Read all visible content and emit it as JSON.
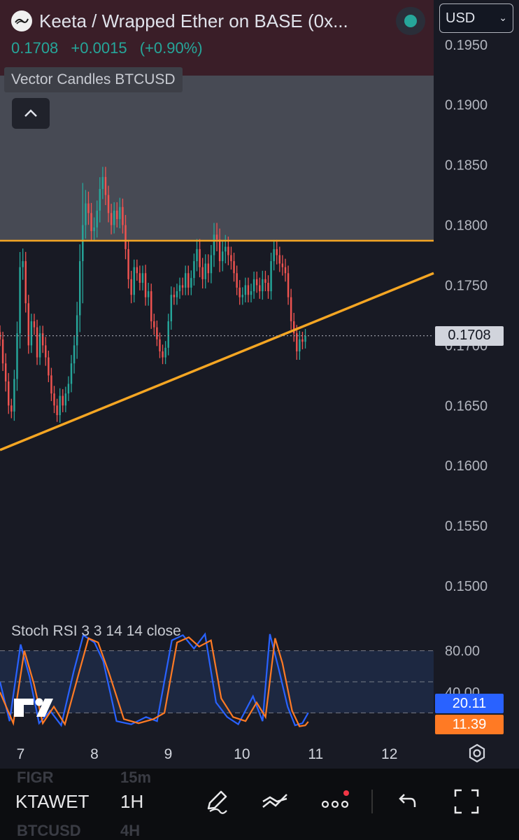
{
  "header": {
    "title": "Keeta / Wrapped Ether on BASE (0x...",
    "price": "0.1708",
    "change": "+0.0015",
    "change_pct": "(+0.90%)",
    "currency": "USD",
    "indicator_label": "Vector Candles BTCUSD"
  },
  "stoch_label": "Stoch RSI 3 3 14 14 close",
  "toolbar": {
    "symbol": "KTAWET",
    "interval": "1H",
    "ghost_top_left": "FIGR",
    "ghost_top_right": "15m",
    "ghost_bottom_left": "BTCUSD",
    "ghost_bottom_right": "4H"
  },
  "colors": {
    "up": "#26a69a",
    "down": "#ef5350",
    "orange": "#f5a623",
    "stoch_k": "#2962ff",
    "stoch_d": "#ff7a24"
  },
  "chart_data": [
    {
      "type": "candlestick",
      "title": "Keeta / Wrapped Ether on BASE",
      "timeframe": "1H",
      "ylim": [
        0.1475,
        0.1965
      ],
      "y_ticks": [
        "0.1950",
        "0.1900",
        "0.1850",
        "0.1800",
        "0.1750",
        "0.1700",
        "0.1650",
        "0.1600",
        "0.1550",
        "0.1500"
      ],
      "x_ticks": [
        {
          "label": "7",
          "day": 7
        },
        {
          "label": "8",
          "day": 8
        },
        {
          "label": "9",
          "day": 9
        },
        {
          "label": "10",
          "day": 10
        },
        {
          "label": "11",
          "day": 11
        },
        {
          "label": "12",
          "day": 12
        }
      ],
      "xlim_days": [
        6.72,
        12.6
      ],
      "current_price": "0.1708",
      "horizontal_level": 0.1787,
      "trendline": [
        {
          "day": 6.72,
          "price": 0.1613
        },
        {
          "day": 12.6,
          "price": 0.176
        }
      ],
      "shaded_zone": [
        0.1787,
        0.1955
      ],
      "closes": [
        0.1705,
        0.1685,
        0.167,
        0.165,
        0.1645,
        0.1672,
        0.171,
        0.1765,
        0.177,
        0.1735,
        0.17,
        0.172,
        0.1715,
        0.169,
        0.171,
        0.17,
        0.169,
        0.1675,
        0.166,
        0.165,
        0.1642,
        0.1658,
        0.165,
        0.166,
        0.1668,
        0.1685,
        0.17,
        0.1725,
        0.177,
        0.18,
        0.1818,
        0.181,
        0.1795,
        0.1798,
        0.1812,
        0.183,
        0.184,
        0.1825,
        0.181,
        0.18,
        0.1812,
        0.1805,
        0.1815,
        0.18,
        0.178,
        0.1755,
        0.1742,
        0.1765,
        0.176,
        0.1752,
        0.176,
        0.174,
        0.1745,
        0.172,
        0.1715,
        0.1705,
        0.1695,
        0.169,
        0.1698,
        0.172,
        0.1742,
        0.174,
        0.1745,
        0.175,
        0.1748,
        0.176,
        0.1748,
        0.1756,
        0.177,
        0.178,
        0.1765,
        0.1755,
        0.1768,
        0.176,
        0.1775,
        0.1792,
        0.1788,
        0.177,
        0.1778,
        0.1782,
        0.1775,
        0.177,
        0.176,
        0.1748,
        0.174,
        0.1742,
        0.175,
        0.1742,
        0.1745,
        0.1755,
        0.175,
        0.1745,
        0.1755,
        0.1752,
        0.1745,
        0.177,
        0.178,
        0.1775,
        0.1768,
        0.1765,
        0.176,
        0.174,
        0.172,
        0.171,
        0.1695,
        0.1705,
        0.1703,
        0.1708
      ],
      "volatility": [
        0.0008,
        0.0009,
        0.0012,
        0.001,
        0.0008,
        0.0011,
        0.0014,
        0.0018,
        0.0015,
        0.0011,
        0.001,
        0.0009,
        0.0009,
        0.0009,
        0.0009,
        0.0009,
        0.001,
        0.0008,
        0.0009,
        0.0009,
        0.0008,
        0.0009,
        0.0008,
        0.0008,
        0.0009,
        0.001,
        0.0012,
        0.0016,
        0.002,
        0.005,
        0.0016,
        0.0014,
        0.0012,
        0.0012,
        0.0012,
        0.0014,
        0.0012,
        0.0012,
        0.0011,
        0.0011,
        0.001,
        0.001,
        0.0011,
        0.001,
        0.0012,
        0.0011,
        0.001,
        0.0009,
        0.0009,
        0.0009,
        0.0009,
        0.001,
        0.001,
        0.0009,
        0.0009,
        0.0008,
        0.0008,
        0.0008,
        0.0008,
        0.0009,
        0.001,
        0.0009,
        0.0009,
        0.0009,
        0.0009,
        0.0009,
        0.0009,
        0.0009,
        0.0009,
        0.0012,
        0.0012,
        0.0011,
        0.0011,
        0.0011,
        0.0012,
        0.0014,
        0.0014,
        0.0013,
        0.0012,
        0.0014,
        0.0012,
        0.001,
        0.001,
        0.0009,
        0.0009,
        0.0009,
        0.0009,
        0.0009,
        0.0009,
        0.0009,
        0.0009,
        0.0009,
        0.001,
        0.001,
        0.0009,
        0.001,
        0.0011,
        0.0011,
        0.001,
        0.001,
        0.001,
        0.0009,
        0.001,
        0.001,
        0.001,
        0.001,
        0.0009,
        0.0008
      ]
    },
    {
      "type": "line",
      "title": "Stoch RSI 3 3 14 14 close",
      "ylim": [
        0,
        100
      ],
      "y_ticks": [
        "80.00",
        "40.00"
      ],
      "bands": [
        80,
        50,
        20
      ],
      "series": [
        {
          "name": "K",
          "value": "20.11",
          "points": [
            [
              6.72,
              50
            ],
            [
              6.85,
              12
            ],
            [
              7.0,
              86
            ],
            [
              7.12,
              55
            ],
            [
              7.25,
              10
            ],
            [
              7.4,
              22
            ],
            [
              7.55,
              8
            ],
            [
              7.72,
              60
            ],
            [
              7.85,
              95
            ],
            [
              8.0,
              88
            ],
            [
              8.12,
              70
            ],
            [
              8.3,
              12
            ],
            [
              8.5,
              9
            ],
            [
              8.7,
              16
            ],
            [
              8.85,
              12
            ],
            [
              9.05,
              90
            ],
            [
              9.2,
              95
            ],
            [
              9.35,
              82
            ],
            [
              9.5,
              96
            ],
            [
              9.65,
              30
            ],
            [
              9.8,
              16
            ],
            [
              9.95,
              9
            ],
            [
              10.15,
              36
            ],
            [
              10.28,
              12
            ],
            [
              10.38,
              96
            ],
            [
              10.5,
              62
            ],
            [
              10.62,
              26
            ],
            [
              10.72,
              8
            ],
            [
              10.82,
              10
            ],
            [
              10.9,
              20.11
            ]
          ]
        },
        {
          "name": "D",
          "value": "11.39",
          "points": [
            [
              6.72,
              40
            ],
            [
              6.9,
              10
            ],
            [
              7.05,
              80
            ],
            [
              7.18,
              48
            ],
            [
              7.3,
              10
            ],
            [
              7.45,
              26
            ],
            [
              7.6,
              9
            ],
            [
              7.78,
              56
            ],
            [
              7.92,
              92
            ],
            [
              8.05,
              88
            ],
            [
              8.2,
              58
            ],
            [
              8.4,
              14
            ],
            [
              8.6,
              10
            ],
            [
              8.8,
              14
            ],
            [
              8.95,
              20
            ],
            [
              9.12,
              88
            ],
            [
              9.28,
              93
            ],
            [
              9.42,
              84
            ],
            [
              9.58,
              90
            ],
            [
              9.72,
              34
            ],
            [
              9.88,
              16
            ],
            [
              10.05,
              12
            ],
            [
              10.2,
              30
            ],
            [
              10.32,
              16
            ],
            [
              10.45,
              92
            ],
            [
              10.55,
              68
            ],
            [
              10.68,
              22
            ],
            [
              10.78,
              7
            ],
            [
              10.86,
              8
            ],
            [
              10.9,
              11.39
            ]
          ]
        }
      ]
    }
  ]
}
